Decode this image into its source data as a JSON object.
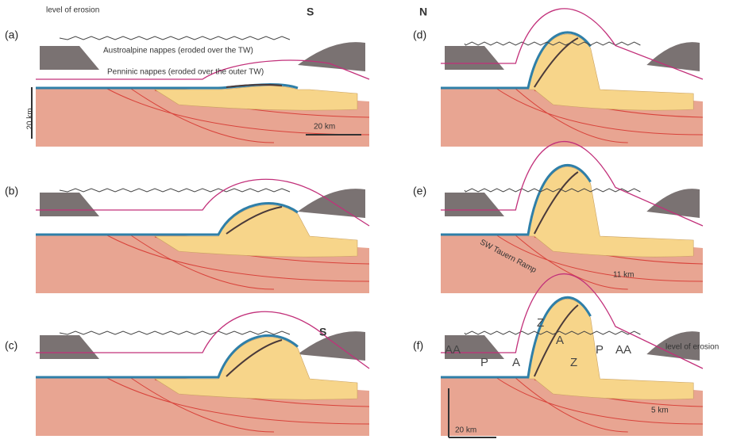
{
  "panels": [
    {
      "label": "(a)",
      "annotations": [
        "level of erosion",
        "S",
        "Austroalpine nappes (eroded over the TW)",
        "Penninic nappes (eroded over the outer TW)",
        "20 km",
        "20 km"
      ]
    },
    {
      "label": "(b)",
      "annotations": []
    },
    {
      "label": "(c)",
      "annotations": [
        "S"
      ]
    },
    {
      "label": "(d)",
      "annotations": [
        "N"
      ]
    },
    {
      "label": "(e)",
      "annotations": [
        "SW Tauern Ramp",
        "11 km"
      ]
    },
    {
      "label": "(f)",
      "annotations": [
        "AA",
        "P",
        "A",
        "Z",
        "Z",
        "A",
        "P",
        "AA",
        "level of erosion",
        "20 km",
        "5 km"
      ]
    }
  ]
}
